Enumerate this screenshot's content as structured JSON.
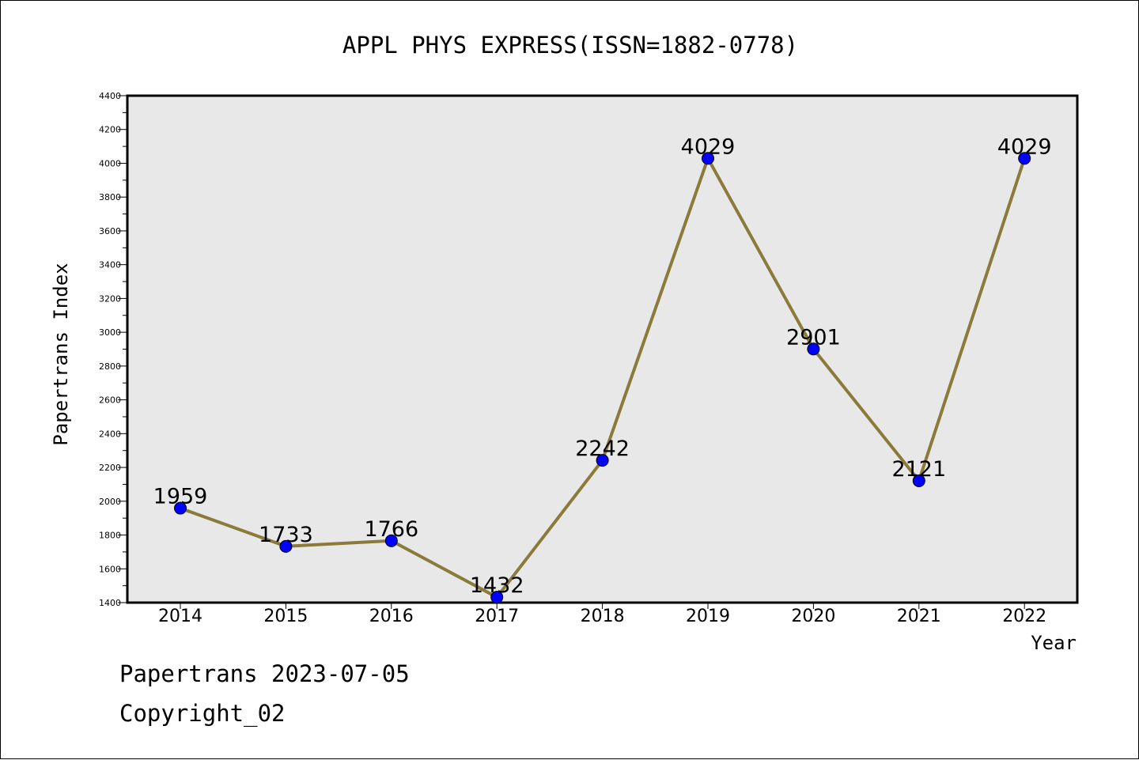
{
  "chart_data": {
    "type": "line",
    "title": "APPL PHYS EXPRESS(ISSN=1882-0778)",
    "xlabel": "Year",
    "ylabel": "Papertrans Index",
    "categories": [
      "2014",
      "2015",
      "2016",
      "2017",
      "2018",
      "2019",
      "2020",
      "2021",
      "2022"
    ],
    "values": [
      1959,
      1733,
      1766,
      1432,
      2242,
      4029,
      2901,
      2121,
      4029
    ],
    "data_labels": [
      "1959",
      "1733",
      "1766",
      "1432",
      "2242",
      "4029",
      "2901",
      "2121",
      "4029"
    ],
    "ylim": [
      1400,
      4400
    ],
    "yticks": [
      "1400",
      "1600",
      "1800",
      "2000",
      "2200",
      "2400",
      "2600",
      "2800",
      "3000",
      "3200",
      "3400",
      "3600",
      "3800",
      "4000",
      "4200",
      "4400"
    ],
    "grid": false,
    "line_color": "#8b7a3a",
    "marker_color": "#0000ff",
    "plot_background": "#e8e8e8"
  },
  "footer": {
    "line1": "Papertrans 2023-07-05",
    "line2": "Copyright_02"
  }
}
